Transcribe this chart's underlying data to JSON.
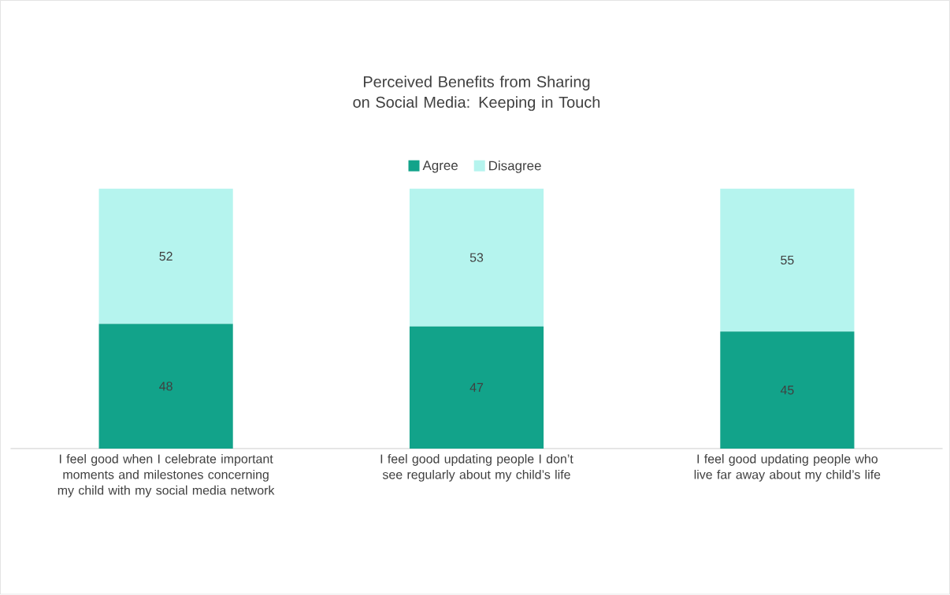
{
  "chart_data": {
    "type": "bar",
    "stacked": true,
    "title": "Perceived Benefits from Sharing on Social Media: Keeping in Touch",
    "categories": [
      "I feel good when I celebrate important moments and milestones concerning my child with my social media network",
      "I feel good updating people I don’t see regularly about my child’s life",
      "I feel good updating people who live far away about my child’s life"
    ],
    "series": [
      {
        "name": "Agree",
        "color": "#12a38a",
        "values": [
          48,
          47,
          45
        ]
      },
      {
        "name": "Disagree",
        "color": "#b5f4ee",
        "values": [
          52,
          53,
          55
        ]
      }
    ],
    "data_labels": true,
    "legend": "top",
    "tick_labels": "x"
  }
}
